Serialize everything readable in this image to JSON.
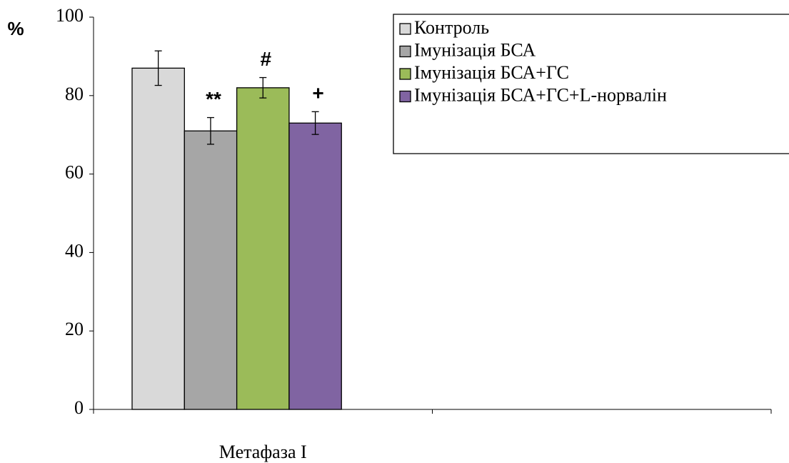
{
  "chart_data": {
    "type": "bar",
    "y_label": "%",
    "categories": [
      "Метафаза I",
      null
    ],
    "series": [
      {
        "name": "Контроль",
        "color": "#d9d9d9",
        "values": [
          87,
          null
        ],
        "errors": [
          4.4,
          null
        ]
      },
      {
        "name": "Імунізація БСА",
        "color": "#a6a6a6",
        "values": [
          71,
          null
        ],
        "errors": [
          3.4,
          null
        ],
        "annotation": "**"
      },
      {
        "name": "Імунізація БСА+ГС",
        "color": "#9bbb59",
        "values": [
          82,
          null
        ],
        "errors": [
          2.6,
          null
        ],
        "annotation": "#"
      },
      {
        "name": "Імунізація БСА+ГС+L-норвалін",
        "color": "#8064a2",
        "values": [
          73,
          null
        ],
        "errors": [
          2.9,
          null
        ],
        "annotation": "+"
      }
    ],
    "ylim": [
      0,
      100
    ],
    "yticks": [
      0,
      20,
      40,
      60,
      80,
      100
    ],
    "grid": false,
    "legend": "top-right"
  }
}
